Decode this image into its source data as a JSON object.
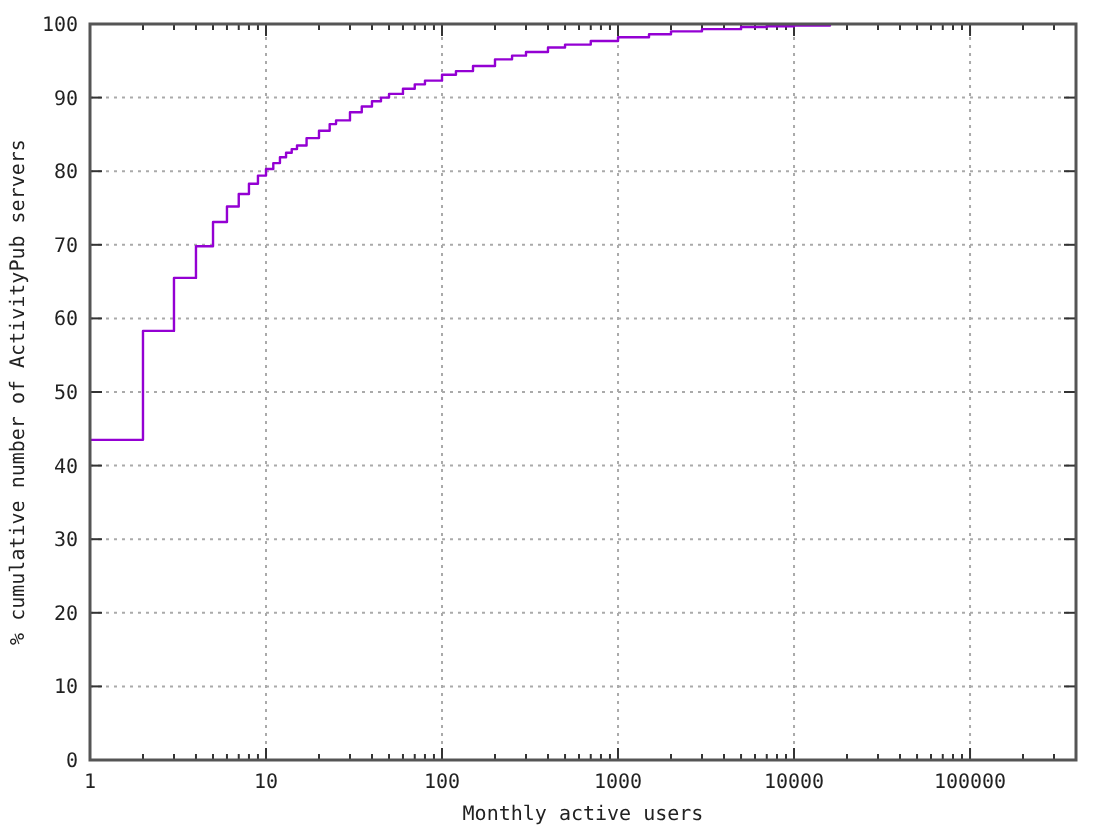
{
  "chart_data": {
    "type": "step",
    "xlabel": "Monthly active users",
    "ylabel": "% cumulative number of ActivityPub servers",
    "log": "x",
    "grid": true,
    "xlim": [
      1,
      400000
    ],
    "ylim": [
      0,
      100
    ],
    "xticks": [
      1,
      {
        "value": 2,
        "label": null
      },
      {
        "value": 3,
        "label": null
      },
      {
        "value": 4,
        "label": null
      },
      {
        "value": 5,
        "label": null
      },
      {
        "value": 6,
        "label": null
      },
      {
        "value": 7,
        "label": null
      },
      {
        "value": 8,
        "label": null
      },
      {
        "value": 9,
        "label": null
      },
      10,
      {
        "value": 20,
        "label": null
      },
      {
        "value": 30,
        "label": null
      },
      {
        "value": 40,
        "label": null
      },
      {
        "value": 50,
        "label": null
      },
      {
        "value": 60,
        "label": null
      },
      {
        "value": 70,
        "label": null
      },
      {
        "value": 80,
        "label": null
      },
      {
        "value": 90,
        "label": null
      },
      100,
      {
        "value": 200,
        "label": null
      },
      {
        "value": 300,
        "label": null
      },
      {
        "value": 400,
        "label": null
      },
      {
        "value": 500,
        "label": null
      },
      {
        "value": 600,
        "label": null
      },
      {
        "value": 700,
        "label": null
      },
      {
        "value": 800,
        "label": null
      },
      {
        "value": 900,
        "label": null
      },
      1000,
      {
        "value": 2000,
        "label": null
      },
      {
        "value": 3000,
        "label": null
      },
      {
        "value": 4000,
        "label": null
      },
      {
        "value": 5000,
        "label": null
      },
      {
        "value": 6000,
        "label": null
      },
      {
        "value": 7000,
        "label": null
      },
      {
        "value": 8000,
        "label": null
      },
      {
        "value": 9000,
        "label": null
      },
      10000,
      {
        "value": 20000,
        "label": null
      },
      {
        "value": 30000,
        "label": null
      },
      {
        "value": 40000,
        "label": null
      },
      {
        "value": 50000,
        "label": null
      },
      {
        "value": 60000,
        "label": null
      },
      {
        "value": 70000,
        "label": null
      },
      {
        "value": 80000,
        "label": null
      },
      {
        "value": 90000,
        "label": null
      },
      100000,
      {
        "value": 200000,
        "label": null
      },
      {
        "value": 300000,
        "label": null
      },
      {
        "value": 400000,
        "label": null
      }
    ],
    "yticks": [
      0,
      10,
      20,
      30,
      40,
      50,
      60,
      70,
      80,
      90,
      100
    ],
    "series": [
      {
        "color": "#9400d3",
        "x": [
          1,
          2,
          3,
          4,
          5,
          6,
          7,
          8,
          9,
          10,
          11,
          12,
          13,
          14,
          15,
          17,
          20,
          23,
          25,
          30,
          35,
          40,
          45,
          50,
          60,
          70,
          80,
          100,
          120,
          150,
          200,
          250,
          300,
          400,
          500,
          700,
          1000,
          1500,
          2000,
          3000,
          5000,
          7000,
          10000,
          16000
        ],
        "values": [
          43.5,
          58.3,
          65.5,
          69.8,
          73.1,
          75.2,
          76.9,
          78.3,
          79.4,
          80.3,
          81.1,
          81.9,
          82.5,
          83,
          83.5,
          84.5,
          85.5,
          86.4,
          86.9,
          88,
          88.8,
          89.5,
          90,
          90.5,
          91.2,
          91.8,
          92.3,
          93.1,
          93.6,
          94.3,
          95.2,
          95.7,
          96.2,
          96.8,
          97.2,
          97.7,
          98.2,
          98.6,
          99,
          99.3,
          99.6,
          99.7,
          99.8,
          100
        ]
      }
    ]
  }
}
